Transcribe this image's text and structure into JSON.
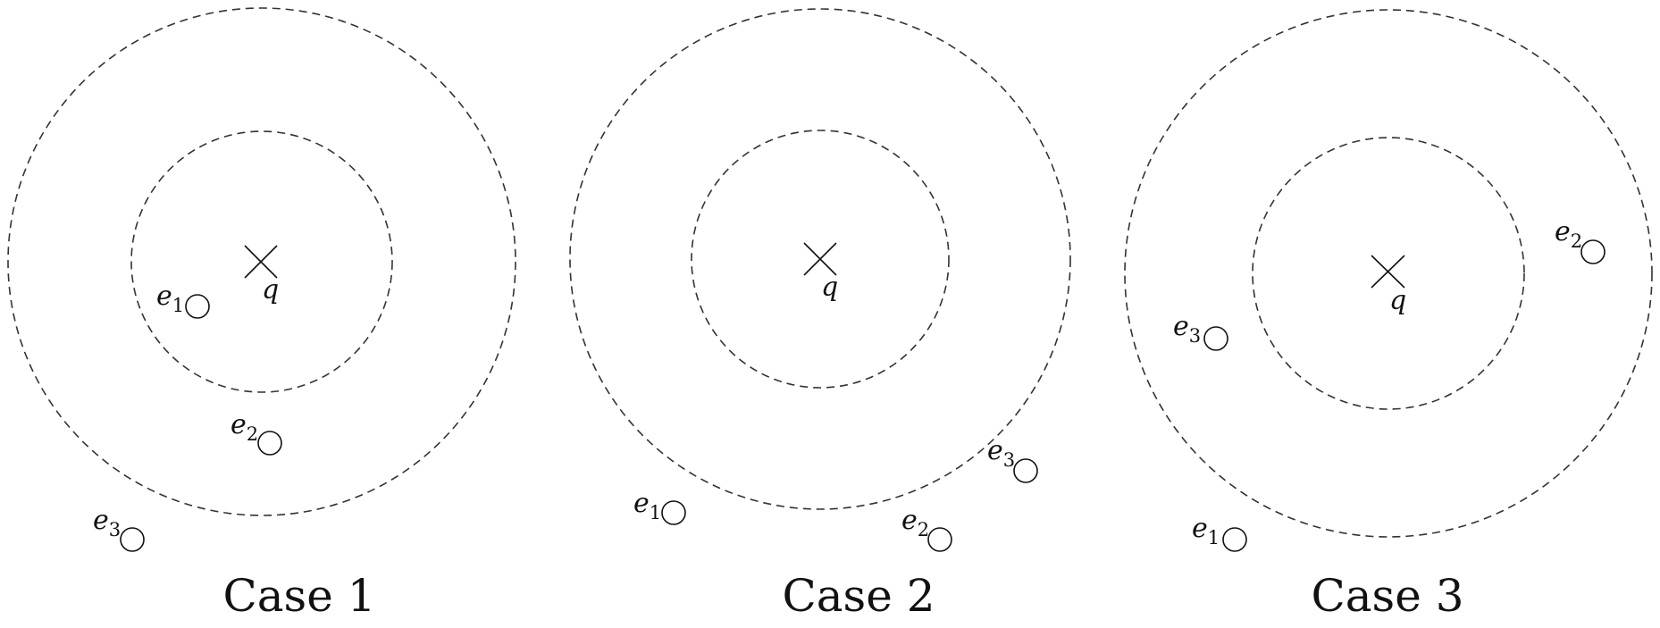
{
  "colors": {
    "ink": "#111111",
    "ring": "#333333",
    "background": "#ffffff"
  },
  "query_symbol": "q",
  "cases": [
    {
      "title": "Case 1",
      "elements": [
        {
          "base": "e",
          "sub": "1"
        },
        {
          "base": "e",
          "sub": "2"
        },
        {
          "base": "e",
          "sub": "3"
        }
      ]
    },
    {
      "title": "Case 2",
      "elements": [
        {
          "base": "e",
          "sub": "1"
        },
        {
          "base": "e",
          "sub": "2"
        },
        {
          "base": "e",
          "sub": "3"
        }
      ]
    },
    {
      "title": "Case 3",
      "elements": [
        {
          "base": "e",
          "sub": "1"
        },
        {
          "base": "e",
          "sub": "2"
        },
        {
          "base": "e",
          "sub": "3"
        }
      ]
    }
  ]
}
